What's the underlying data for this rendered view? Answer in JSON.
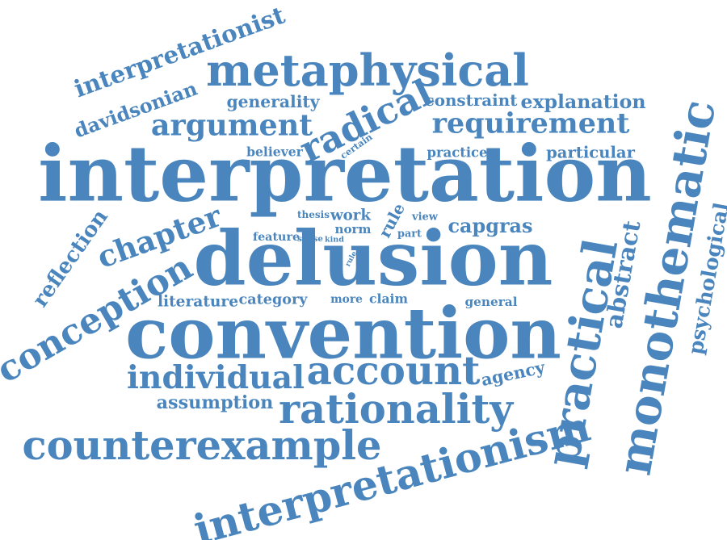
{
  "color": "#4a86bd",
  "background": "#ffffff",
  "words": [
    {
      "text": "interpretation"
    },
    {
      "text": "delusion"
    },
    {
      "text": "convention"
    },
    {
      "text": "metaphysical"
    },
    {
      "text": "interpretationism"
    },
    {
      "text": "monothematic"
    },
    {
      "text": "practical"
    },
    {
      "text": "conception"
    },
    {
      "text": "counterexample"
    },
    {
      "text": "rationality"
    },
    {
      "text": "account"
    },
    {
      "text": "individual"
    },
    {
      "text": "radical"
    },
    {
      "text": "argument"
    },
    {
      "text": "requirement"
    },
    {
      "text": "chapter"
    },
    {
      "text": "interpretationist"
    },
    {
      "text": "davidsonian"
    },
    {
      "text": "reflection"
    },
    {
      "text": "psychological"
    },
    {
      "text": "abstract"
    },
    {
      "text": "explanation"
    },
    {
      "text": "constraint"
    },
    {
      "text": "generality"
    },
    {
      "text": "particular"
    },
    {
      "text": "practice"
    },
    {
      "text": "believer"
    },
    {
      "text": "certain"
    },
    {
      "text": "capgras"
    },
    {
      "text": "assumption"
    },
    {
      "text": "agency"
    },
    {
      "text": "literature"
    },
    {
      "text": "category"
    },
    {
      "text": "more"
    },
    {
      "text": "claim"
    },
    {
      "text": "general"
    },
    {
      "text": "thesis"
    },
    {
      "text": "work"
    },
    {
      "text": "norm"
    },
    {
      "text": "rule"
    },
    {
      "text": "view"
    },
    {
      "text": "part"
    },
    {
      "text": "feature"
    },
    {
      "text": "sense"
    },
    {
      "text": "kind"
    },
    {
      "text": "rule"
    }
  ]
}
